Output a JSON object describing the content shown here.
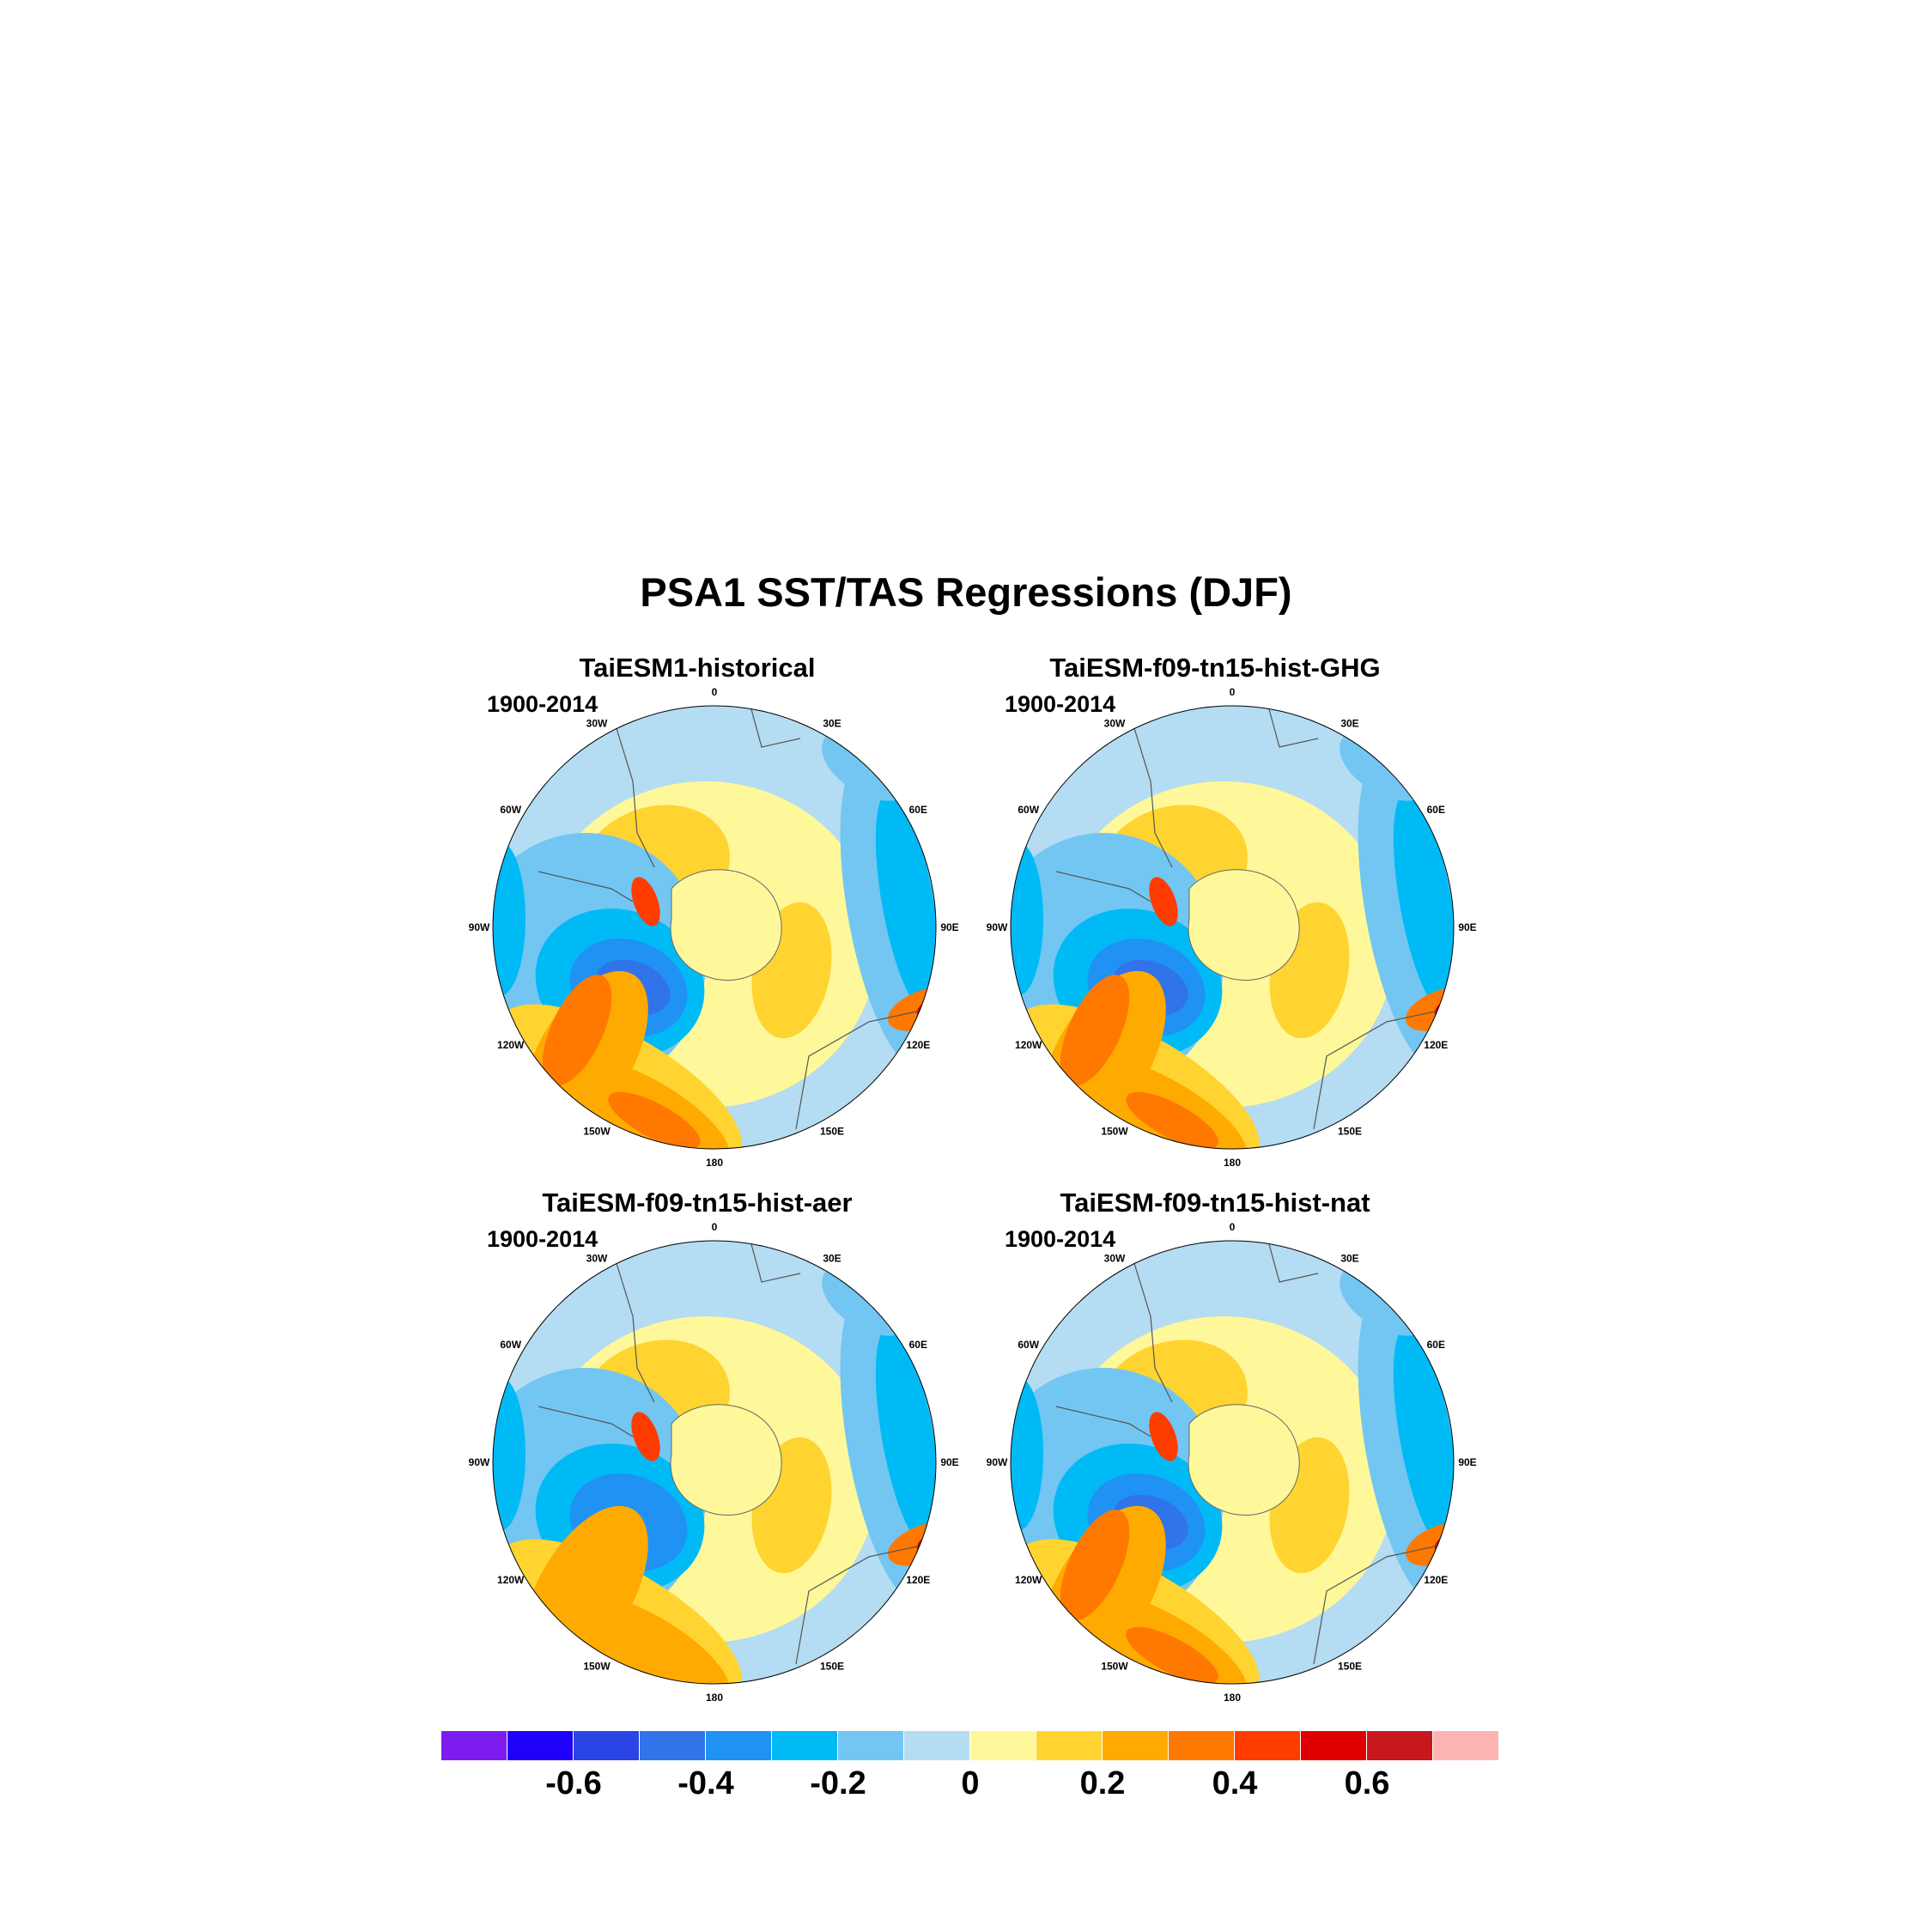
{
  "title": "PSA1 SST/TAS Regressions (DJF)",
  "period": "1900-2014",
  "longitude_labels": [
    "0",
    "30E",
    "60E",
    "90E",
    "120E",
    "150E",
    "180",
    "150W",
    "120W",
    "90W",
    "60W",
    "30W"
  ],
  "panels": [
    {
      "id": "historical",
      "title": "TaiESM1-historical"
    },
    {
      "id": "ghg",
      "title": "TaiESM-f09-tn15-hist-GHG"
    },
    {
      "id": "aer",
      "title": "TaiESM-f09-tn15-hist-aer"
    },
    {
      "id": "nat",
      "title": "TaiESM-f09-tn15-hist-nat"
    }
  ],
  "colorbar": {
    "colors": [
      "#7d1cf0",
      "#1f00f8",
      "#2a44e6",
      "#3173e8",
      "#1f92f4",
      "#00baf6",
      "#73c6f2",
      "#b4dcf2",
      "#fff89a",
      "#ffd431",
      "#ffaa00",
      "#ff7800",
      "#ff3c00",
      "#e00000",
      "#c8181e",
      "#ffb4b4"
    ],
    "tick_labels": [
      "-0.6",
      "-0.4",
      "-0.2",
      "0",
      "0.2",
      "0.4",
      "0.6"
    ],
    "tick_values": [
      -0.6,
      -0.4,
      -0.2,
      0,
      0.2,
      0.4,
      0.6
    ],
    "min": -0.8,
    "max": 0.8
  }
}
